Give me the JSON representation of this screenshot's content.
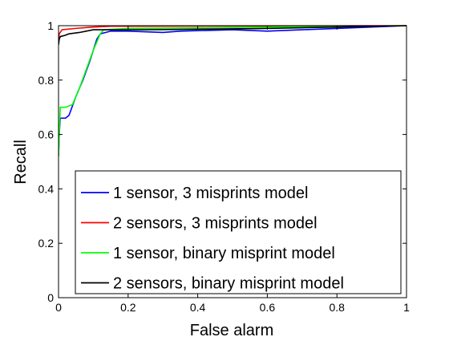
{
  "chart_data": {
    "type": "line",
    "title": "",
    "xlabel": "False alarm",
    "ylabel": "Recall",
    "xlim": [
      0,
      1
    ],
    "ylim": [
      0,
      1
    ],
    "x_ticks": [
      "0",
      "0.2",
      "0.4",
      "0.6",
      "0.8",
      "1"
    ],
    "y_ticks": [
      "0",
      "0.2",
      "0.4",
      "0.6",
      "0.8",
      "1"
    ],
    "grid": false,
    "legend_position": "bottom-right",
    "series": [
      {
        "name": "1 sensor, 3 misprints model",
        "color": "#0000ff",
        "points": [
          [
            0.0,
            0.52
          ],
          [
            0.002,
            0.6
          ],
          [
            0.005,
            0.66
          ],
          [
            0.02,
            0.66
          ],
          [
            0.03,
            0.67
          ],
          [
            0.05,
            0.74
          ],
          [
            0.07,
            0.8
          ],
          [
            0.09,
            0.87
          ],
          [
            0.11,
            0.95
          ],
          [
            0.12,
            0.97
          ],
          [
            0.15,
            0.98
          ],
          [
            0.2,
            0.98
          ],
          [
            0.3,
            0.975
          ],
          [
            0.35,
            0.98
          ],
          [
            0.5,
            0.985
          ],
          [
            0.6,
            0.98
          ],
          [
            0.7,
            0.985
          ],
          [
            0.8,
            0.99
          ],
          [
            0.9,
            0.995
          ],
          [
            1.0,
            1.0
          ]
        ]
      },
      {
        "name": "2 sensors, 3 misprints model",
        "color": "#ff0000",
        "points": [
          [
            0.0,
            0.95
          ],
          [
            0.002,
            0.97
          ],
          [
            0.01,
            0.985
          ],
          [
            0.05,
            0.99
          ],
          [
            0.1,
            0.995
          ],
          [
            0.15,
            0.998
          ],
          [
            0.2,
            0.998
          ],
          [
            0.5,
            0.999
          ],
          [
            1.0,
            1.0
          ]
        ]
      },
      {
        "name": "1 sensor, binary misprint model",
        "color": "#00ff00",
        "points": [
          [
            0.0,
            0.52
          ],
          [
            0.002,
            0.6
          ],
          [
            0.005,
            0.7
          ],
          [
            0.02,
            0.7
          ],
          [
            0.04,
            0.71
          ],
          [
            0.06,
            0.77
          ],
          [
            0.08,
            0.84
          ],
          [
            0.1,
            0.91
          ],
          [
            0.12,
            0.97
          ],
          [
            0.13,
            0.985
          ],
          [
            0.2,
            0.99
          ],
          [
            0.4,
            0.992
          ],
          [
            0.6,
            0.995
          ],
          [
            0.8,
            0.998
          ],
          [
            1.0,
            1.0
          ]
        ]
      },
      {
        "name": "2 sensors, binary misprint model",
        "color": "#000000",
        "points": [
          [
            0.0,
            0.93
          ],
          [
            0.002,
            0.95
          ],
          [
            0.005,
            0.96
          ],
          [
            0.02,
            0.965
          ],
          [
            0.03,
            0.97
          ],
          [
            0.06,
            0.975
          ],
          [
            0.1,
            0.985
          ],
          [
            0.15,
            0.985
          ],
          [
            0.25,
            0.985
          ],
          [
            0.4,
            0.987
          ],
          [
            0.6,
            0.99
          ],
          [
            0.8,
            0.995
          ],
          [
            1.0,
            1.0
          ]
        ]
      }
    ]
  }
}
